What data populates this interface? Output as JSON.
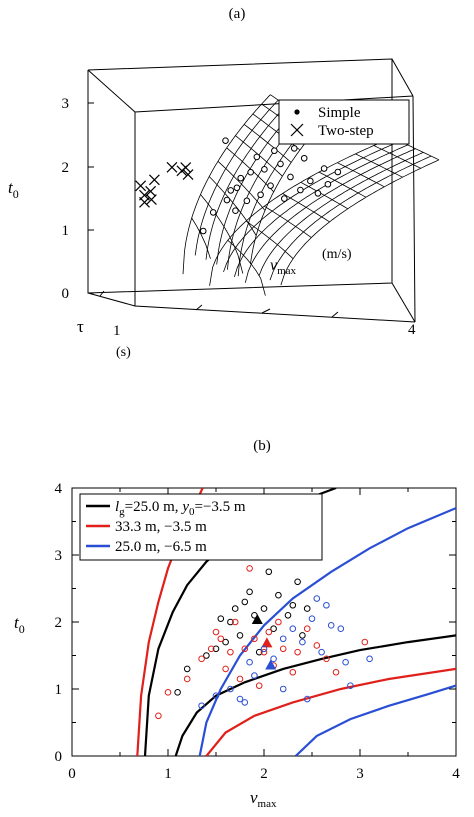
{
  "chart_data": [
    {
      "panel_label": "(a)",
      "type": "scatter",
      "zlabel_sym": "t",
      "zlabel_sub": "0",
      "z_ticks": [
        "0",
        "1",
        "2",
        "3"
      ],
      "xlabel_sym": "v",
      "xlabel_sub": "max",
      "xlabel_unit": "(m/s)",
      "x_tick_end": "4",
      "ylabel_sym": "τ",
      "ylabel_unit": "(s)",
      "y_tick": "1",
      "legend": {
        "simple_label": "Simple",
        "twostep_label": "Two-step"
      },
      "series": [
        {
          "name": "Two-step",
          "marker": "x",
          "points": [
            [
              0.6,
              0.15,
              1.7
            ],
            [
              0.65,
              0.15,
              1.55
            ],
            [
              0.62,
              0.2,
              1.45
            ],
            [
              0.7,
              0.2,
              1.62
            ],
            [
              0.68,
              0.25,
              1.5
            ],
            [
              0.75,
              0.2,
              1.8
            ],
            [
              0.95,
              0.25,
              2.0
            ],
            [
              1.05,
              0.3,
              1.95
            ],
            [
              1.1,
              0.3,
              2.0
            ],
            [
              1.1,
              0.35,
              1.9
            ]
          ]
        },
        {
          "name": "Simple",
          "marker": "circle",
          "points": [
            [
              1.3,
              0.35,
              1.0
            ],
            [
              1.4,
              0.4,
              1.3
            ],
            [
              1.55,
              0.45,
              1.5
            ],
            [
              1.6,
              0.45,
              1.65
            ],
            [
              1.65,
              0.5,
              1.7
            ],
            [
              1.7,
              0.5,
              1.85
            ],
            [
              1.75,
              0.55,
              1.5
            ],
            [
              1.8,
              0.55,
              1.95
            ],
            [
              1.85,
              0.6,
              2.2
            ],
            [
              1.9,
              0.6,
              1.6
            ],
            [
              1.95,
              0.6,
              2.0
            ],
            [
              2.0,
              0.65,
              1.75
            ],
            [
              2.05,
              0.65,
              2.3
            ],
            [
              2.1,
              0.7,
              2.1
            ],
            [
              2.15,
              0.7,
              1.55
            ],
            [
              2.2,
              0.75,
              1.9
            ],
            [
              2.25,
              0.75,
              2.35
            ],
            [
              2.3,
              0.8,
              1.7
            ],
            [
              2.35,
              0.8,
              2.2
            ],
            [
              2.4,
              0.85,
              1.85
            ],
            [
              2.5,
              0.85,
              1.65
            ],
            [
              2.55,
              0.9,
              2.05
            ],
            [
              2.6,
              0.9,
              1.8
            ],
            [
              2.7,
              0.95,
              2.0
            ],
            [
              1.5,
              0.5,
              2.45
            ],
            [
              1.6,
              0.55,
              1.35
            ]
          ]
        }
      ]
    },
    {
      "panel_label": "(b)",
      "type": "line+scatter",
      "xlim": [
        0,
        4
      ],
      "ylim": [
        0,
        4
      ],
      "x_ticks": [
        "0",
        "1",
        "2",
        "3",
        "4"
      ],
      "y_ticks": [
        "0",
        "1",
        "2",
        "3",
        "4"
      ],
      "xlabel_sym": "v",
      "xlabel_sub": "max",
      "ylabel_sym": "t",
      "ylabel_sub": "0",
      "legend": [
        {
          "color": "#000000",
          "parts": [
            [
              "l",
              "i"
            ],
            [
              "g",
              "sub"
            ],
            [
              "=25.0 m, ",
              "n"
            ],
            [
              "y",
              "i"
            ],
            [
              "0",
              "sub"
            ],
            [
              "=−3.5 m",
              "n"
            ]
          ]
        },
        {
          "color": "#e0201b",
          "parts": [
            [
              "33.3 m,      −3.5 m",
              "n"
            ]
          ]
        },
        {
          "color": "#2a4fd4",
          "parts": [
            [
              "25.0 m,      −6.5 m",
              "n"
            ]
          ]
        }
      ],
      "series": [
        {
          "name": "lg=25.0 m, y0=−3.5 m",
          "color": "#000000",
          "curves": [
            [
              [
                0.76,
                0.0
              ],
              [
                0.8,
                0.9
              ],
              [
                0.9,
                1.6
              ],
              [
                1.05,
                2.15
              ],
              [
                1.2,
                2.55
              ],
              [
                1.4,
                2.9
              ],
              [
                1.6,
                3.15
              ],
              [
                1.9,
                3.45
              ],
              [
                2.2,
                3.7
              ],
              [
                2.6,
                3.92
              ],
              [
                2.75,
                4.0
              ]
            ],
            [
              [
                1.08,
                0.0
              ],
              [
                1.15,
                0.3
              ],
              [
                1.3,
                0.65
              ],
              [
                1.5,
                0.9
              ],
              [
                1.8,
                1.1
              ],
              [
                2.2,
                1.3
              ],
              [
                2.6,
                1.45
              ],
              [
                3.0,
                1.58
              ],
              [
                3.5,
                1.7
              ],
              [
                4.0,
                1.8
              ]
            ]
          ],
          "points": [
            [
              1.1,
              0.95
            ],
            [
              1.2,
              1.3
            ],
            [
              1.4,
              1.5
            ],
            [
              1.5,
              1.6
            ],
            [
              1.6,
              1.7
            ],
            [
              1.65,
              2.0
            ],
            [
              1.7,
              2.2
            ],
            [
              1.75,
              1.8
            ],
            [
              1.8,
              2.3
            ],
            [
              1.85,
              2.45
            ],
            [
              1.9,
              2.1
            ],
            [
              1.95,
              1.55
            ],
            [
              2.0,
              2.2
            ],
            [
              2.05,
              2.75
            ],
            [
              2.1,
              1.9
            ],
            [
              2.15,
              2.4
            ],
            [
              2.25,
              2.1
            ],
            [
              2.35,
              2.6
            ],
            [
              2.4,
              1.8
            ],
            [
              1.55,
              2.05
            ],
            [
              2.3,
              2.25
            ],
            [
              2.45,
              2.2
            ]
          ],
          "highlight": [
            1.93,
            2.03
          ]
        },
        {
          "name": "33.3 m, −3.5 m",
          "color": "#e0201b",
          "curves": [
            [
              [
                0.68,
                0.0
              ],
              [
                0.72,
                0.9
              ],
              [
                0.8,
                1.7
              ],
              [
                0.9,
                2.3
              ],
              [
                1.0,
                2.8
              ],
              [
                1.12,
                3.25
              ],
              [
                1.25,
                3.65
              ],
              [
                1.36,
                4.0
              ]
            ],
            [
              [
                1.4,
                0.0
              ],
              [
                1.6,
                0.35
              ],
              [
                1.9,
                0.6
              ],
              [
                2.3,
                0.8
              ],
              [
                2.8,
                1.0
              ],
              [
                3.3,
                1.15
              ],
              [
                4.0,
                1.3
              ]
            ]
          ],
          "points": [
            [
              0.9,
              0.6
            ],
            [
              1.0,
              0.95
            ],
            [
              1.2,
              1.15
            ],
            [
              1.35,
              1.45
            ],
            [
              1.45,
              1.6
            ],
            [
              1.5,
              1.85
            ],
            [
              1.6,
              1.3
            ],
            [
              1.65,
              1.55
            ],
            [
              1.7,
              2.0
            ],
            [
              1.75,
              1.15
            ],
            [
              1.8,
              1.6
            ],
            [
              1.85,
              2.8
            ],
            [
              1.9,
              1.75
            ],
            [
              1.95,
              1.05
            ],
            [
              2.0,
              1.55
            ],
            [
              2.05,
              1.85
            ],
            [
              2.1,
              1.35
            ],
            [
              2.15,
              2.0
            ],
            [
              2.2,
              1.6
            ],
            [
              2.35,
              1.55
            ],
            [
              2.45,
              1.9
            ],
            [
              2.55,
              1.65
            ],
            [
              2.65,
              1.45
            ],
            [
              2.75,
              1.25
            ],
            [
              3.05,
              1.7
            ],
            [
              1.55,
              1.75
            ],
            [
              2.3,
              1.25
            ]
          ],
          "highlight": [
            2.03,
            1.68
          ]
        },
        {
          "name": "25.0 m, −6.5 m",
          "color": "#2a4fd4",
          "curves": [
            [
              [
                1.33,
                0.0
              ],
              [
                1.4,
                0.5
              ],
              [
                1.55,
                1.0
              ],
              [
                1.75,
                1.5
              ],
              [
                2.0,
                1.95
              ],
              [
                2.3,
                2.35
              ],
              [
                2.7,
                2.75
              ],
              [
                3.1,
                3.1
              ],
              [
                3.5,
                3.4
              ],
              [
                4.0,
                3.7
              ]
            ],
            [
              [
                2.33,
                0.0
              ],
              [
                2.55,
                0.3
              ],
              [
                2.9,
                0.55
              ],
              [
                3.3,
                0.75
              ],
              [
                3.7,
                0.92
              ],
              [
                4.0,
                1.05
              ]
            ]
          ],
          "points": [
            [
              1.35,
              0.75
            ],
            [
              1.5,
              0.9
            ],
            [
              1.65,
              1.0
            ],
            [
              1.75,
              0.85
            ],
            [
              1.8,
              0.8
            ],
            [
              1.85,
              1.4
            ],
            [
              1.9,
              1.2
            ],
            [
              2.0,
              1.6
            ],
            [
              2.1,
              1.45
            ],
            [
              2.2,
              1.75
            ],
            [
              2.3,
              1.9
            ],
            [
              2.4,
              1.7
            ],
            [
              2.5,
              2.05
            ],
            [
              2.55,
              2.35
            ],
            [
              2.6,
              1.55
            ],
            [
              2.65,
              2.25
            ],
            [
              2.7,
              1.95
            ],
            [
              2.8,
              1.9
            ],
            [
              2.85,
              1.4
            ],
            [
              2.9,
              1.05
            ],
            [
              3.1,
              1.45
            ],
            [
              2.2,
              1.0
            ],
            [
              2.45,
              0.85
            ]
          ],
          "highlight": [
            2.07,
            1.35
          ]
        }
      ]
    }
  ]
}
